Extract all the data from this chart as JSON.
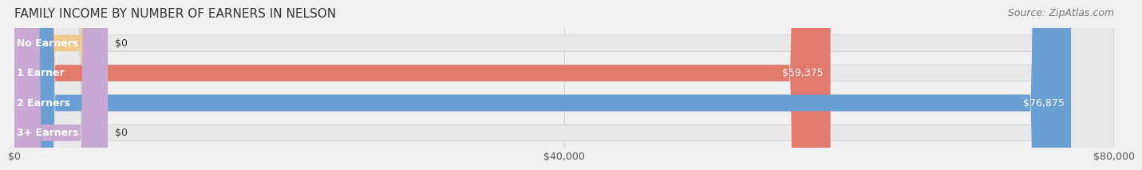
{
  "title": "FAMILY INCOME BY NUMBER OF EARNERS IN NELSON",
  "source": "Source: ZipAtlas.com",
  "categories": [
    "No Earners",
    "1 Earner",
    "2 Earners",
    "3+ Earners"
  ],
  "values": [
    0,
    59375,
    76875,
    0
  ],
  "bar_colors": [
    "#f0c98c",
    "#e07b6e",
    "#6b9fd4",
    "#c9a8d4"
  ],
  "label_colors": [
    "#333333",
    "#ffffff",
    "#ffffff",
    "#333333"
  ],
  "xlim": [
    0,
    80000
  ],
  "xticks": [
    0,
    40000,
    80000
  ],
  "xtick_labels": [
    "$0",
    "$40,000",
    "$80,000"
  ],
  "background_color": "#f0f0f0",
  "bar_bg_color": "#e8e8e8",
  "title_fontsize": 11,
  "source_fontsize": 9,
  "label_fontsize": 9,
  "tick_fontsize": 9
}
